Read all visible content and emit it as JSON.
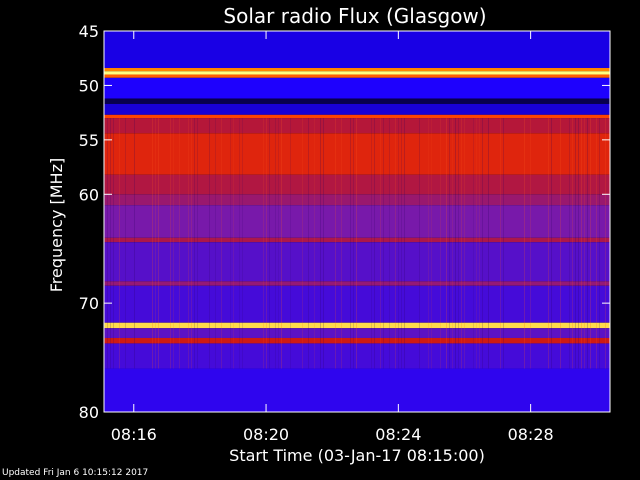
{
  "chart_data": {
    "type": "heatmap",
    "title": "Solar radio Flux (Glasgow)",
    "xlabel": "Start Time (03-Jan-17 08:15:00)",
    "ylabel": "Frequency [MHz]",
    "x_unit": "minutes after 08:00",
    "xlim": [
      15.1,
      30.4
    ],
    "ylim": [
      45,
      80
    ],
    "x_ticks": [
      {
        "value": 16,
        "label": "08:16"
      },
      {
        "value": 20,
        "label": "08:20"
      },
      {
        "value": 24,
        "label": "08:24"
      },
      {
        "value": 28,
        "label": "08:28"
      }
    ],
    "y_ticks": [
      {
        "value": 45,
        "label": "45"
      },
      {
        "value": 50,
        "label": "50"
      },
      {
        "value": 55,
        "label": "55"
      },
      {
        "value": 60,
        "label": "60"
      },
      {
        "value": 70,
        "label": "70"
      },
      {
        "value": 80,
        "label": "80"
      }
    ],
    "colormap": [
      "#000000",
      "#1c00ff",
      "#7a1aa8",
      "#c81616",
      "#ff3a00",
      "#ffaa00",
      "#ffff80"
    ],
    "bands": [
      {
        "from": 45.0,
        "to": 48.4,
        "level": 0.15
      },
      {
        "from": 48.4,
        "to": 48.7,
        "level": 0.78
      },
      {
        "from": 48.7,
        "to": 49.0,
        "level": 1.0
      },
      {
        "from": 49.0,
        "to": 49.3,
        "level": 0.72
      },
      {
        "from": 49.3,
        "to": 51.2,
        "level": 0.17
      },
      {
        "from": 51.2,
        "to": 51.7,
        "level": 0.05
      },
      {
        "from": 51.7,
        "to": 52.7,
        "level": 0.14
      },
      {
        "from": 52.7,
        "to": 53.0,
        "level": 0.68
      },
      {
        "from": 53.0,
        "to": 54.4,
        "level": 0.46
      },
      {
        "from": 54.4,
        "to": 58.2,
        "level": 0.57
      },
      {
        "from": 58.2,
        "to": 60.0,
        "level": 0.45
      },
      {
        "from": 60.0,
        "to": 61.0,
        "level": 0.4
      },
      {
        "from": 61.0,
        "to": 64.0,
        "level": 0.33
      },
      {
        "from": 64.0,
        "to": 64.4,
        "level": 0.44
      },
      {
        "from": 64.4,
        "to": 68.0,
        "level": 0.27
      },
      {
        "from": 68.0,
        "to": 68.4,
        "level": 0.39
      },
      {
        "from": 68.4,
        "to": 71.8,
        "level": 0.24
      },
      {
        "from": 71.8,
        "to": 72.3,
        "level": 0.93
      },
      {
        "from": 72.3,
        "to": 73.2,
        "level": 0.28
      },
      {
        "from": 73.2,
        "to": 73.7,
        "level": 0.52
      },
      {
        "from": 73.7,
        "to": 76.0,
        "level": 0.24
      },
      {
        "from": 76.0,
        "to": 80.0,
        "level": 0.2
      }
    ],
    "grid": false
  },
  "footer": {
    "updated": "Updated Fri Jan  6 10:15:12 2017"
  }
}
